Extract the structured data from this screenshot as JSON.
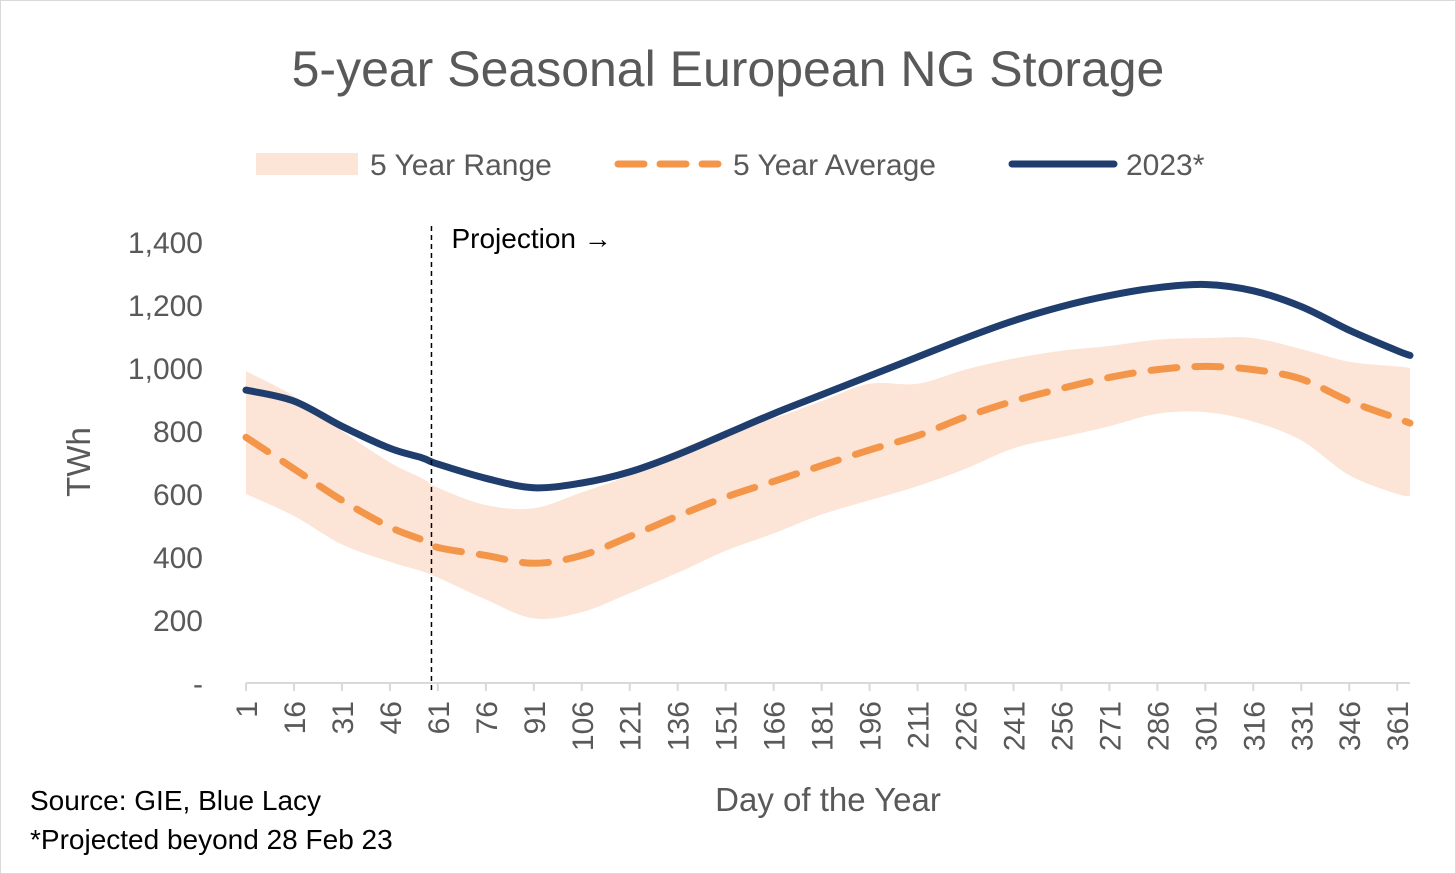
{
  "chart_data": {
    "type": "line",
    "title": "5-year Seasonal European NG Storage",
    "xlabel": "Day of the Year",
    "ylabel": "TWh",
    "xlim": [
      1,
      365
    ],
    "ylim": [
      0,
      1400
    ],
    "x_ticks": [
      1,
      16,
      31,
      46,
      61,
      76,
      91,
      106,
      121,
      136,
      151,
      166,
      181,
      196,
      211,
      226,
      241,
      256,
      271,
      286,
      301,
      316,
      331,
      346,
      361
    ],
    "y_ticks": [
      {
        "value": 0,
        "label": "-"
      },
      {
        "value": 200,
        "label": "200"
      },
      {
        "value": 400,
        "label": "400"
      },
      {
        "value": 600,
        "label": "600"
      },
      {
        "value": 800,
        "label": "800"
      },
      {
        "value": 1000,
        "label": "1,000"
      },
      {
        "value": 1200,
        "label": "1,200"
      },
      {
        "value": 1400,
        "label": "1,400"
      }
    ],
    "grid": false,
    "legend_position": "top",
    "x": [
      1,
      16,
      31,
      46,
      56,
      61,
      76,
      91,
      106,
      121,
      136,
      151,
      166,
      181,
      196,
      211,
      226,
      241,
      256,
      271,
      286,
      301,
      316,
      331,
      346,
      361,
      365
    ],
    "series": [
      {
        "name": "5 Year Range",
        "kind": "range",
        "color": "#fce4d6",
        "lower": [
          600,
          530,
          440,
          385,
          355,
          335,
          265,
          205,
          225,
          285,
          350,
          420,
          475,
          535,
          580,
          625,
          680,
          745,
          780,
          815,
          855,
          860,
          830,
          770,
          660,
          600,
          595
        ],
        "upper": [
          990,
          910,
          800,
          700,
          650,
          620,
          565,
          555,
          605,
          660,
          740,
          795,
          840,
          895,
          950,
          950,
          995,
          1030,
          1055,
          1070,
          1090,
          1095,
          1095,
          1060,
          1020,
          1005,
          1000
        ]
      },
      {
        "name": "5 Year Average",
        "kind": "line",
        "dashed": true,
        "color": "#f4964a",
        "values": [
          780,
          680,
          580,
          495,
          455,
          430,
          405,
          380,
          405,
          465,
          530,
          590,
          640,
          690,
          740,
          785,
          845,
          895,
          935,
          970,
          995,
          1005,
          995,
          965,
          895,
          840,
          825
        ]
      },
      {
        "name": "2023*",
        "kind": "line",
        "dashed": false,
        "color": "#1f3e6e",
        "values": [
          930,
          895,
          815,
          745,
          715,
          695,
          650,
          620,
          635,
          670,
          725,
          790,
          855,
          915,
          975,
          1035,
          1095,
          1150,
          1195,
          1230,
          1255,
          1265,
          1245,
          1195,
          1120,
          1055,
          1040
        ]
      }
    ],
    "annotations": [
      {
        "text": "Projection →",
        "x": 59,
        "style": "dashed-vertical-line"
      }
    ]
  },
  "notes": {
    "source": "Source: GIE, Blue Lacy",
    "footnote": "*Projected beyond 28 Feb 23"
  }
}
